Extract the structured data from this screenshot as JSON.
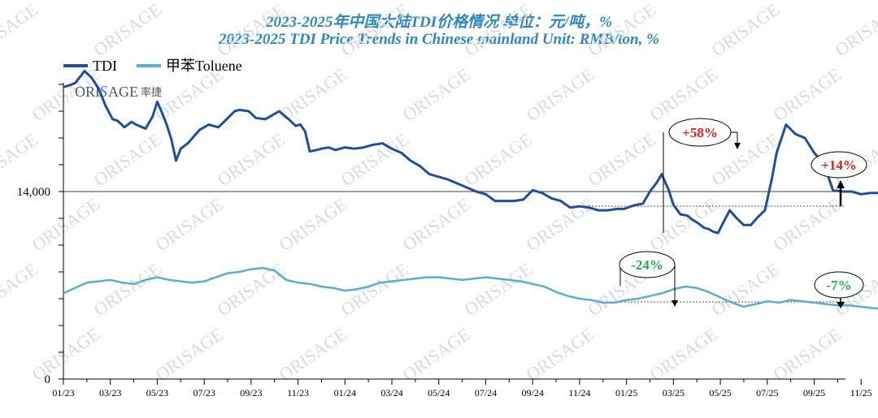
{
  "header": {
    "title_cn": "2023-2025年中国大陆TDI价格情况  单位：元/吨，%",
    "title_en": "2023-2025 TDI Price Trends in Chinese mainland Unit: RMB/ton, %"
  },
  "logo": {
    "brand": "ORI",
    "brand2": "AGE",
    "cn": "率捷"
  },
  "colors": {
    "tdi": "#1f4e9c",
    "toluene": "#5aaed4",
    "up": "#e02020",
    "down": "#22b14c",
    "title": "#2e86c1"
  },
  "annotations": [
    {
      "text": "+58%",
      "type": "up"
    },
    {
      "text": "+14%",
      "type": "up"
    },
    {
      "text": "-24%",
      "type": "down"
    },
    {
      "text": "-7%",
      "type": "down"
    }
  ],
  "chart_data": {
    "type": "line",
    "title": "2023-2025 TDI Price Trends in Chinese mainland Unit: RMB/ton, %",
    "x_tick_labels": [
      "01/23",
      "03/23",
      "05/23",
      "07/23",
      "09/23",
      "11/23",
      "01/24",
      "03/24",
      "05/24",
      "07/24",
      "09/24",
      "11/24",
      "01/25",
      "03/25",
      "05/25",
      "07/25",
      "09/25",
      "11/25"
    ],
    "y_tick_labels": [
      "0",
      "14,000"
    ],
    "ylim": [
      0,
      24000
    ],
    "legend": "top-left",
    "grid": false,
    "series": [
      {
        "name": "TDI",
        "x_month_index": [
          0,
          0.2,
          0.5,
          0.9,
          1.2,
          1.5,
          1.8,
          2.1,
          2.3,
          2.6,
          2.9,
          3.1,
          3.5,
          3.8,
          4.0,
          4.2,
          4.4,
          4.6,
          4.8,
          5.0,
          5.3,
          5.8,
          6.2,
          6.6,
          6.9,
          7.3,
          7.5,
          7.9,
          8.2,
          8.6,
          8.9,
          9.2,
          9.6,
          9.9,
          10.1,
          10.3,
          10.5,
          10.8,
          11.0,
          11.3,
          11.6,
          12.0,
          12.4,
          12.8,
          13.2,
          13.6,
          14.0,
          14.4,
          14.8,
          15.2,
          15.6,
          16.0,
          16.4,
          16.8,
          17.2,
          17.6,
          18.0,
          18.4,
          18.8,
          19.2,
          19.6,
          20.0,
          20.4,
          20.8,
          21.2,
          21.6,
          22.0,
          22.4,
          22.8,
          23.2,
          23.6,
          23.9,
          24.2,
          24.4,
          24.7,
          25.0,
          25.3,
          25.5,
          25.8,
          26.0,
          26.3,
          26.6,
          26.8,
          27.0,
          27.3,
          27.5,
          27.7,
          27.9,
          28.1,
          28.4,
          28.7,
          29.0,
          29.3,
          29.6,
          29.9,
          30.2,
          30.4,
          30.8,
          31.2,
          31.6,
          32.0,
          32.4,
          32.8,
          33.2,
          33.6,
          34.0,
          34.4,
          34.8,
          35.2,
          35.6,
          35.99
        ],
        "values": [
          21800,
          21900,
          22100,
          23000,
          22500,
          21700,
          20400,
          19400,
          19300,
          18800,
          19200,
          19000,
          18700,
          19600,
          20700,
          19900,
          19000,
          17900,
          16300,
          17200,
          17600,
          18600,
          19000,
          18800,
          19300,
          20000,
          20100,
          20000,
          19500,
          19400,
          19700,
          20000,
          19400,
          18900,
          19000,
          18500,
          17000,
          17100,
          17200,
          17300,
          17100,
          17300,
          17200,
          17300,
          17500,
          17600,
          17200,
          16900,
          16300,
          15900,
          15300,
          15100,
          14900,
          14600,
          14300,
          14000,
          13800,
          13300,
          13300,
          13300,
          13400,
          14100,
          13900,
          13500,
          13300,
          12800,
          12900,
          12800,
          12600,
          12600,
          12700,
          12700,
          12900,
          13000,
          13100,
          14000,
          14700,
          15300,
          14100,
          13000,
          12300,
          12200,
          11900,
          11700,
          11300,
          11200,
          11000,
          10900,
          11600,
          12600,
          12000,
          11500,
          11500,
          12100,
          12600,
          15000,
          16900,
          19000,
          18300,
          18000,
          16900,
          16100,
          14100,
          14000,
          14000,
          13800,
          13900,
          13900,
          14000,
          14200,
          14900
        ]
      },
      {
        "name": "甲苯Toluene",
        "x_month_index": [
          0,
          0.5,
          1.0,
          1.5,
          2.0,
          2.5,
          3.0,
          3.5,
          4.0,
          4.5,
          5.0,
          5.5,
          6.0,
          6.5,
          7.0,
          7.5,
          8.0,
          8.5,
          9.0,
          9.5,
          10.0,
          10.5,
          11.0,
          11.5,
          12.0,
          12.5,
          13.0,
          13.5,
          14.0,
          14.5,
          15.0,
          15.5,
          16.0,
          16.5,
          17.0,
          17.5,
          18.0,
          18.5,
          19.0,
          19.5,
          20.0,
          20.5,
          21.0,
          21.5,
          22.0,
          22.5,
          23.0,
          23.5,
          24.0,
          24.5,
          25.0,
          25.5,
          26.0,
          26.5,
          27.0,
          27.5,
          28.0,
          28.5,
          29.0,
          29.5,
          30.0,
          30.5,
          31.0,
          31.5,
          32.0,
          32.5,
          33.0,
          33.5,
          34.0,
          34.5,
          35.0,
          35.5,
          35.99
        ],
        "values": [
          6400,
          6800,
          7200,
          7300,
          7400,
          7200,
          7100,
          7400,
          7600,
          7400,
          7300,
          7200,
          7300,
          7600,
          7900,
          8000,
          8200,
          8300,
          8100,
          7400,
          7200,
          7100,
          6900,
          6800,
          6600,
          6700,
          6900,
          7200,
          7300,
          7400,
          7500,
          7600,
          7600,
          7500,
          7400,
          7500,
          7600,
          7500,
          7400,
          7300,
          7100,
          6900,
          6500,
          6200,
          6000,
          5900,
          5700,
          5700,
          5900,
          6000,
          6200,
          6400,
          6700,
          6900,
          6800,
          6500,
          6100,
          5700,
          5400,
          5600,
          5800,
          5700,
          5900,
          5800,
          5700,
          5600,
          5500,
          5500,
          5400,
          5300,
          5200,
          5300,
          5300
        ]
      }
    ]
  }
}
